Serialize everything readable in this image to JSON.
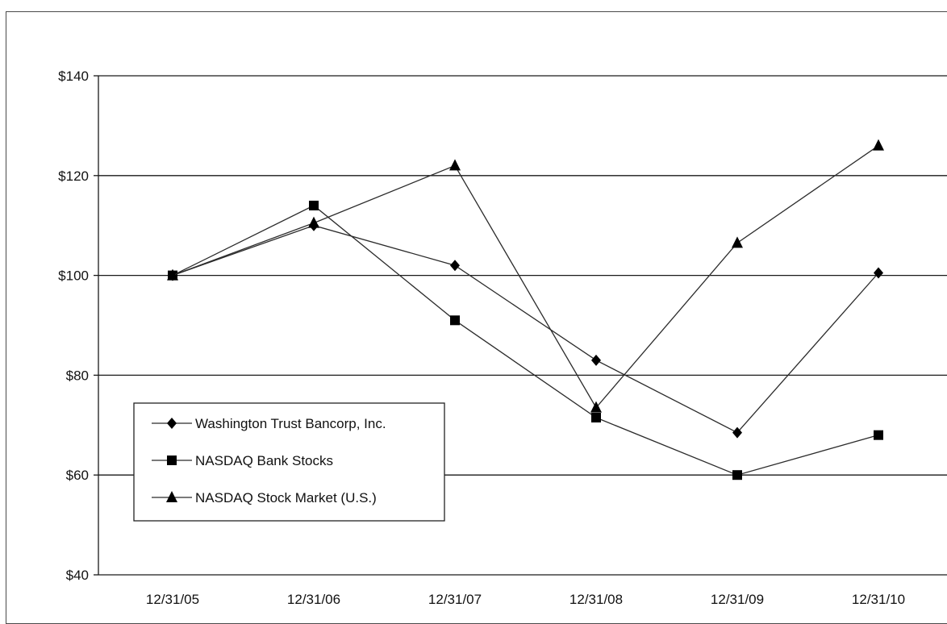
{
  "chart_data": {
    "type": "line",
    "title": "",
    "xlabel": "",
    "ylabel": "",
    "categories": [
      "12/31/05",
      "12/31/06",
      "12/31/07",
      "12/31/08",
      "12/31/09",
      "12/31/10"
    ],
    "ylim": [
      40,
      140
    ],
    "y_ticks": [
      40,
      60,
      80,
      100,
      120,
      140
    ],
    "y_tick_labels": [
      "$40",
      "$60",
      "$80",
      "$100",
      "$120",
      "$140"
    ],
    "grid": true,
    "legend_position": "bottom-left",
    "series": [
      {
        "name": "Washington Trust Bancorp, Inc.",
        "marker": "diamond",
        "values": [
          100,
          110,
          102,
          83,
          68.5,
          100.5
        ]
      },
      {
        "name": "NASDAQ Bank Stocks",
        "marker": "square",
        "values": [
          100,
          114,
          91,
          71.5,
          60,
          68
        ]
      },
      {
        "name": "NASDAQ Stock Market (U.S.)",
        "marker": "triangle",
        "values": [
          100,
          110.5,
          122,
          73.5,
          106.5,
          126
        ]
      }
    ],
    "colors": {
      "line": "#2b2b2b",
      "marker": "#000000",
      "grid": "#1a1a1a"
    }
  }
}
